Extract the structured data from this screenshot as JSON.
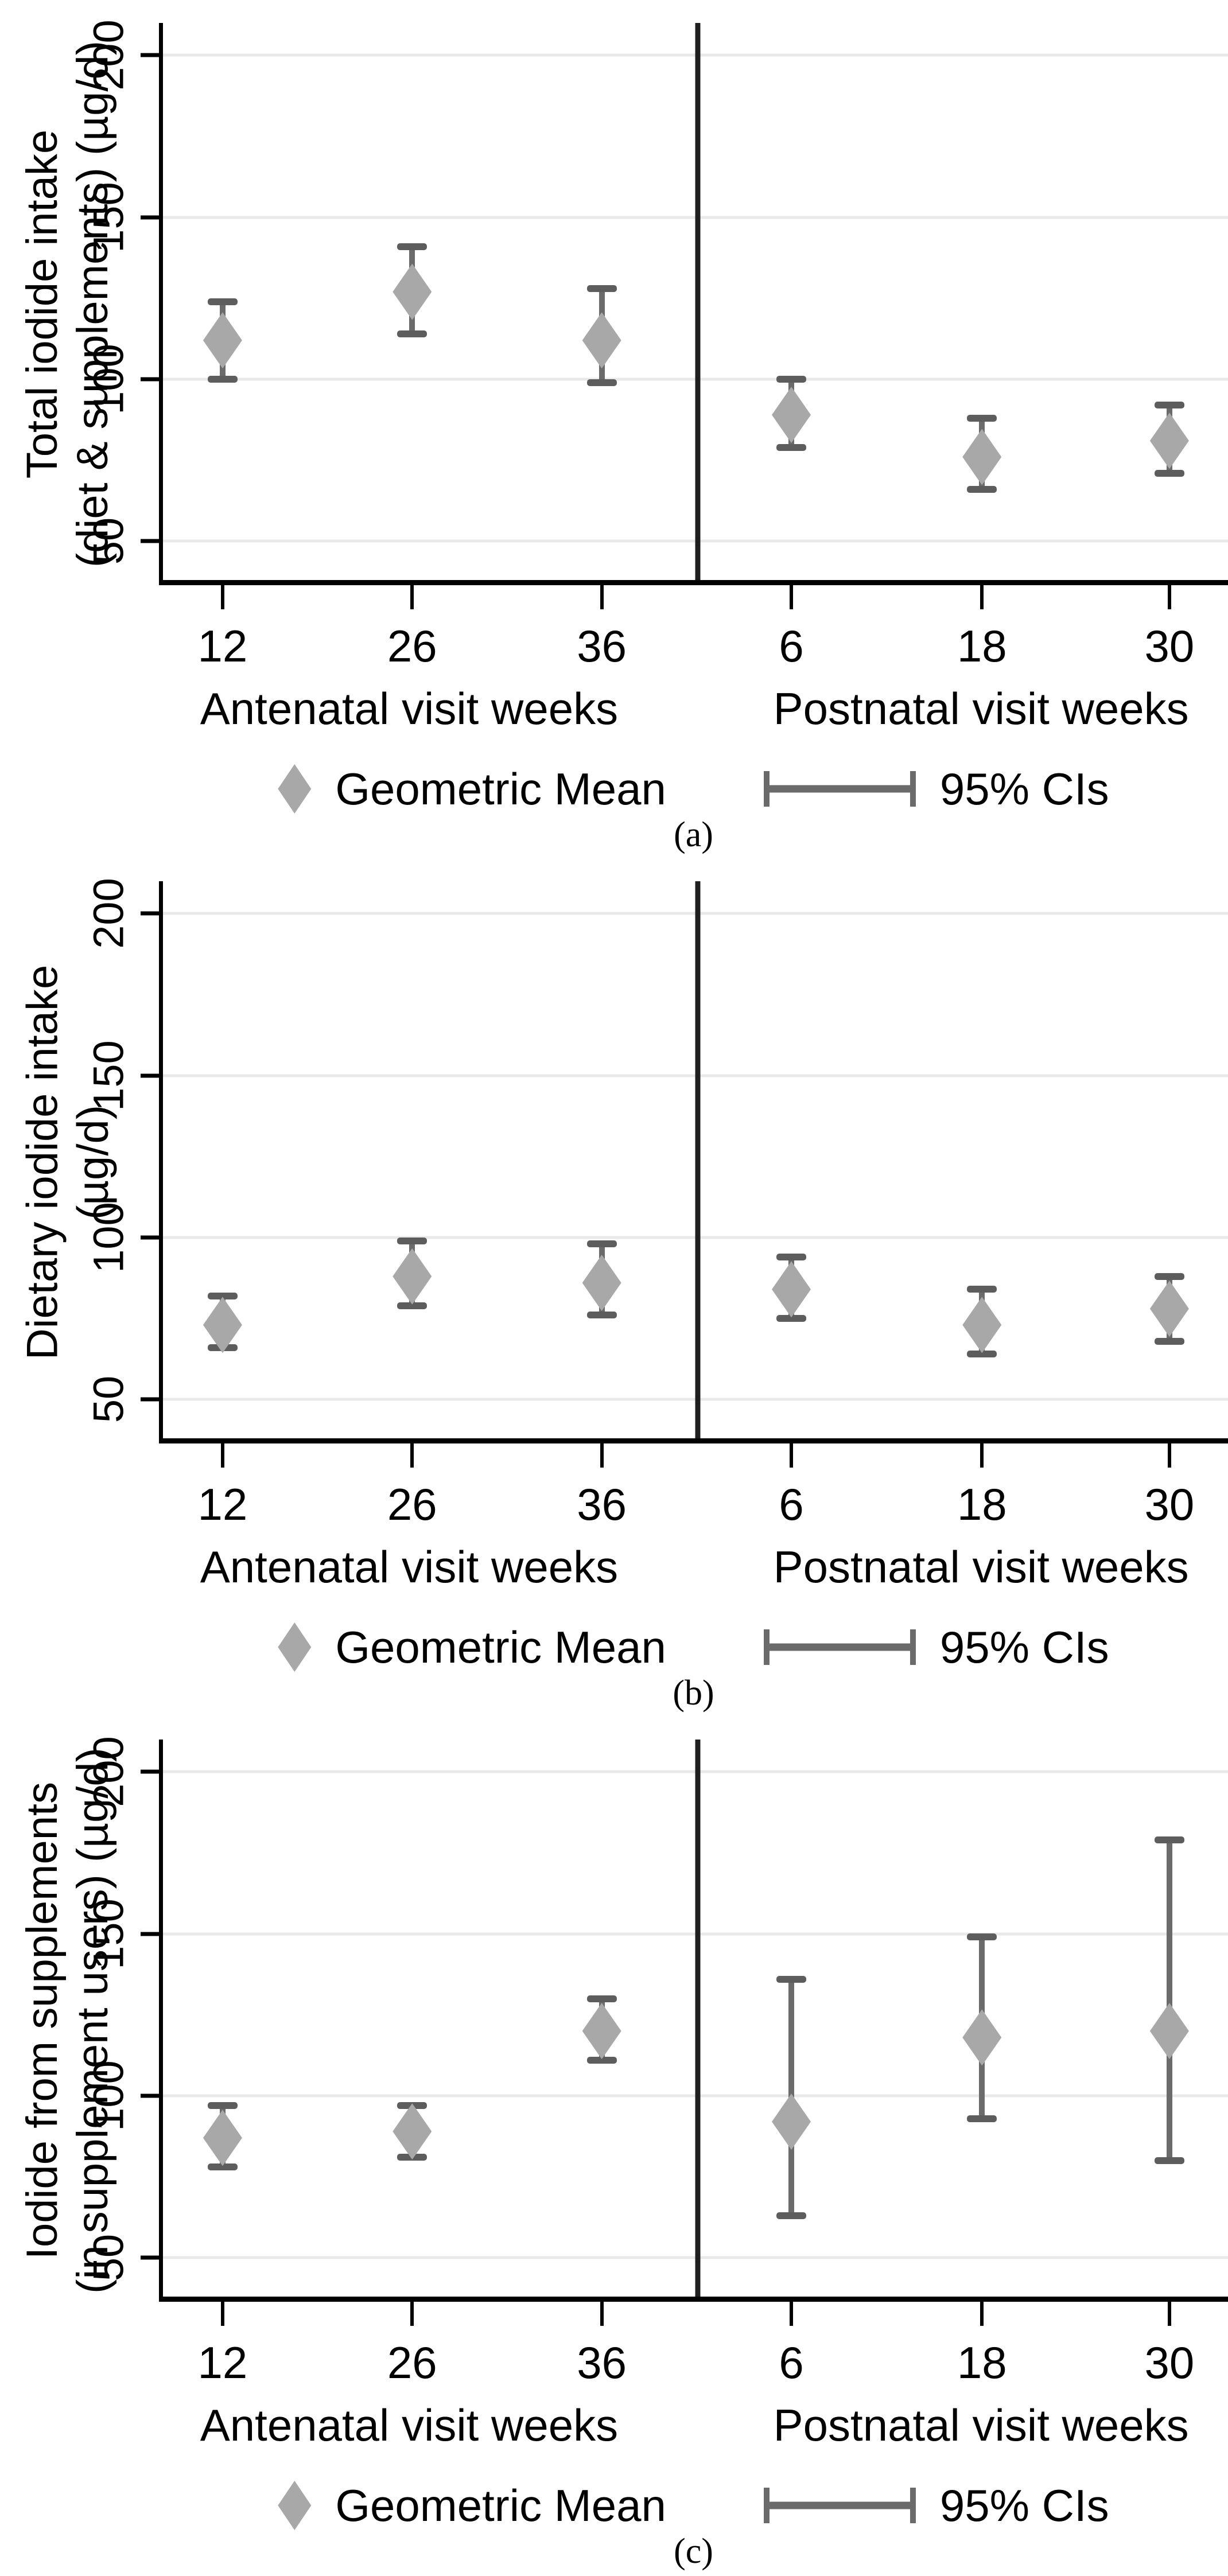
{
  "figure": {
    "y_axis_ticks": [
      "200",
      "150",
      "100",
      "50"
    ],
    "x_axis": {
      "antenatal": {
        "label": "Antenatal visit weeks",
        "ticks": [
          "12",
          "26",
          "36"
        ]
      },
      "postnatal": {
        "label": "Postnatal visit weeks",
        "ticks": [
          "6",
          "18",
          "30"
        ]
      }
    },
    "legend": {
      "mean_label": "Geometric Mean",
      "ci_label": "95% CIs"
    },
    "colors": {
      "mean_marker": "#a8a8a8",
      "ci_bar": "#6b6b6b",
      "ci_cap": "#5d5d5d",
      "gridline": "#e9e9e9",
      "axis": "#000000",
      "divider": "#1e1e1e"
    }
  },
  "chart_data": [
    {
      "type": "scatter",
      "panel_caption": "(a)",
      "ylabel": "Total iodide intake (diet & supplements) (µg/d)",
      "ylabel_lines": [
        "Total iodide intake",
        "(diet & supplements) (µg/d)"
      ],
      "xlabel_groups": [
        "Antenatal visit weeks",
        "Postnatal visit weeks"
      ],
      "x_categories": [
        "12",
        "26",
        "36",
        "6",
        "18",
        "30"
      ],
      "ylim": [
        38,
        210
      ],
      "y_gridlines": [
        200,
        150,
        100,
        50
      ],
      "grid": "horizontal-only",
      "legend_position": "bottom-center",
      "series": [
        {
          "name": "Geometric Mean",
          "values": [
            112,
            127,
            112,
            89,
            76,
            81
          ]
        }
      ],
      "ci_low": [
        100,
        114,
        99,
        79,
        66,
        71
      ],
      "ci_high": [
        124,
        141,
        128,
        100,
        88,
        92
      ]
    },
    {
      "type": "scatter",
      "panel_caption": "(b)",
      "ylabel": "Dietary iodide intake (µg/d)",
      "ylabel_lines": [
        "Dietary iodide intake",
        "(µg/d)"
      ],
      "xlabel_groups": [
        "Antenatal visit weeks",
        "Postnatal visit weeks"
      ],
      "x_categories": [
        "12",
        "26",
        "36",
        "6",
        "18",
        "30"
      ],
      "ylim": [
        38,
        210
      ],
      "y_gridlines": [
        200,
        150,
        100,
        50
      ],
      "grid": "horizontal-only",
      "legend_position": "bottom-center",
      "series": [
        {
          "name": "Geometric Mean",
          "values": [
            73,
            88,
            86,
            84,
            73,
            78
          ]
        }
      ],
      "ci_low": [
        66,
        79,
        76,
        75,
        64,
        68
      ],
      "ci_high": [
        82,
        99,
        98,
        94,
        84,
        88
      ]
    },
    {
      "type": "scatter",
      "panel_caption": "(c)",
      "ylabel": "Iodide from supplements (in supplement users) (µg/d)",
      "ylabel_lines": [
        "Iodide from supplements",
        "(in supplement users) (µg/d)"
      ],
      "xlabel_groups": [
        "Antenatal visit weeks",
        "Postnatal visit weeks"
      ],
      "x_categories": [
        "12",
        "26",
        "36",
        "6",
        "18",
        "30"
      ],
      "ylim": [
        38,
        210
      ],
      "y_gridlines": [
        200,
        150,
        100,
        50
      ],
      "grid": "horizontal-only",
      "legend_position": "bottom-center",
      "series": [
        {
          "name": "Geometric Mean",
          "values": [
            87,
            89,
            120,
            92,
            118,
            120
          ]
        }
      ],
      "ci_low": [
        78,
        81,
        111,
        63,
        93,
        80
      ],
      "ci_high": [
        97,
        97,
        130,
        136,
        149,
        179
      ]
    }
  ]
}
